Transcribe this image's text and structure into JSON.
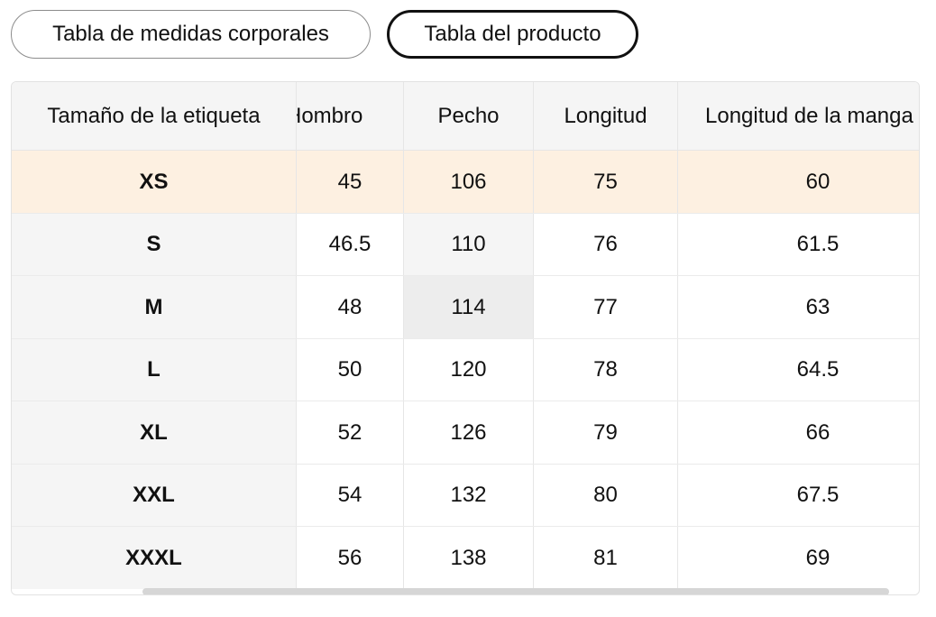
{
  "tabs": {
    "body_label": "Tabla de medidas corporales",
    "product_label": "Tabla del producto"
  },
  "table": {
    "headers": [
      "Tamaño de la etiqueta",
      "Hombro",
      "Pecho",
      "Longitud",
      "Longitud de la manga"
    ],
    "rows": [
      [
        "XS",
        "45",
        "106",
        "75",
        "60"
      ],
      [
        "S",
        "46.5",
        "110",
        "76",
        "61.5"
      ],
      [
        "M",
        "48",
        "114",
        "77",
        "63"
      ],
      [
        "L",
        "50",
        "120",
        "78",
        "64.5"
      ],
      [
        "XL",
        "52",
        "126",
        "79",
        "66"
      ],
      [
        "XXL",
        "54",
        "132",
        "80",
        "67.5"
      ],
      [
        "XXXL",
        "56",
        "138",
        "81",
        "69"
      ]
    ]
  },
  "colors": {
    "highlight_row": "#fdf0e1",
    "header_bg": "#f5f5f5",
    "active_border": "#111111"
  }
}
